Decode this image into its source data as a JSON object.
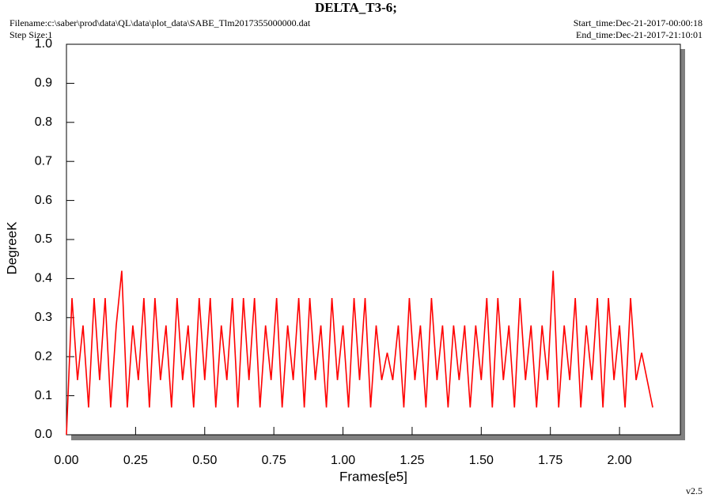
{
  "chart_data": {
    "type": "line",
    "title": "DELTA_T3-6;",
    "filename": "Filename:c:\\saber\\prod\\data\\QL\\data\\plot_data\\SABE_Tlm2017355000000.dat",
    "step_size": "Step Size:1",
    "start_time": "Start_time:Dec-21-2017-00:00:18",
    "end_time": "End_time:Dec-21-2017-21:10:01",
    "x_label": "Frames[e5]",
    "y_label": "DegreeK",
    "version": "v2.5",
    "xlim": [
      0,
      2.22
    ],
    "ylim": [
      0,
      1
    ],
    "xticks": [
      {
        "value": 0,
        "label": "0.00"
      },
      0.25,
      {
        "value": 0.5,
        "label": "0.50"
      },
      0.75,
      {
        "value": 1,
        "label": "1.00"
      },
      1.25,
      {
        "value": 1.5,
        "label": "1.50"
      },
      1.75,
      {
        "value": 2,
        "label": "2.00"
      }
    ],
    "yticks": [
      {
        "value": 0,
        "label": "0.0"
      },
      0.1,
      0.2,
      0.3,
      0.4,
      0.5,
      0.6,
      0.7,
      0.8,
      0.9,
      {
        "value": 1,
        "label": "1.0"
      }
    ],
    "grid": false,
    "series": [
      {
        "name": "DELTA_T3-6",
        "color": "#ff0000",
        "x": [
          0,
          0.02,
          0.04,
          0.06,
          0.08,
          0.1,
          0.12,
          0.14,
          0.16,
          0.18,
          0.2,
          0.22,
          0.24,
          0.26,
          0.28,
          0.3,
          0.32,
          0.34,
          0.36,
          0.38,
          0.4,
          0.42,
          0.44,
          0.46,
          0.48,
          0.5,
          0.52,
          0.54,
          0.56,
          0.58,
          0.6,
          0.62,
          0.64,
          0.66,
          0.68,
          0.7,
          0.72,
          0.74,
          0.76,
          0.78,
          0.8,
          0.82,
          0.84,
          0.86,
          0.88,
          0.9,
          0.92,
          0.94,
          0.96,
          0.98,
          1,
          1.02,
          1.04,
          1.06,
          1.08,
          1.1,
          1.12,
          1.14,
          1.16,
          1.18,
          1.2,
          1.22,
          1.24,
          1.26,
          1.28,
          1.3,
          1.32,
          1.34,
          1.36,
          1.38,
          1.4,
          1.42,
          1.44,
          1.46,
          1.48,
          1.5,
          1.52,
          1.54,
          1.56,
          1.58,
          1.6,
          1.62,
          1.64,
          1.66,
          1.68,
          1.7,
          1.72,
          1.74,
          1.76,
          1.78,
          1.8,
          1.82,
          1.84,
          1.86,
          1.88,
          1.9,
          1.92,
          1.94,
          1.96,
          1.98,
          2,
          2.02,
          2.04,
          2.06,
          2.08,
          2.1,
          2.12
        ],
        "values": [
          0,
          0.35,
          0.14,
          0.28,
          0.07,
          0.35,
          0.14,
          0.35,
          0.07,
          0.28,
          0.42,
          0.07,
          0.28,
          0.14,
          0.35,
          0.07,
          0.35,
          0.14,
          0.28,
          0.07,
          0.35,
          0.14,
          0.28,
          0.07,
          0.35,
          0.14,
          0.35,
          0.07,
          0.28,
          0.14,
          0.35,
          0.07,
          0.35,
          0.14,
          0.35,
          0.07,
          0.28,
          0.14,
          0.35,
          0.07,
          0.28,
          0.14,
          0.35,
          0.07,
          0.35,
          0.14,
          0.28,
          0.07,
          0.35,
          0.14,
          0.28,
          0.07,
          0.35,
          0.14,
          0.35,
          0.07,
          0.28,
          0.14,
          0.21,
          0.14,
          0.28,
          0.07,
          0.35,
          0.14,
          0.28,
          0.07,
          0.35,
          0.14,
          0.28,
          0.07,
          0.28,
          0.14,
          0.28,
          0.07,
          0.28,
          0.14,
          0.35,
          0.07,
          0.35,
          0.14,
          0.28,
          0.07,
          0.35,
          0.14,
          0.28,
          0.07,
          0.28,
          0.14,
          0.42,
          0.07,
          0.28,
          0.14,
          0.35,
          0.07,
          0.28,
          0.14,
          0.35,
          0.07,
          0.35,
          0.14,
          0.28,
          0.07,
          0.35,
          0.14,
          0.21,
          0.14,
          0.07
        ]
      }
    ]
  }
}
